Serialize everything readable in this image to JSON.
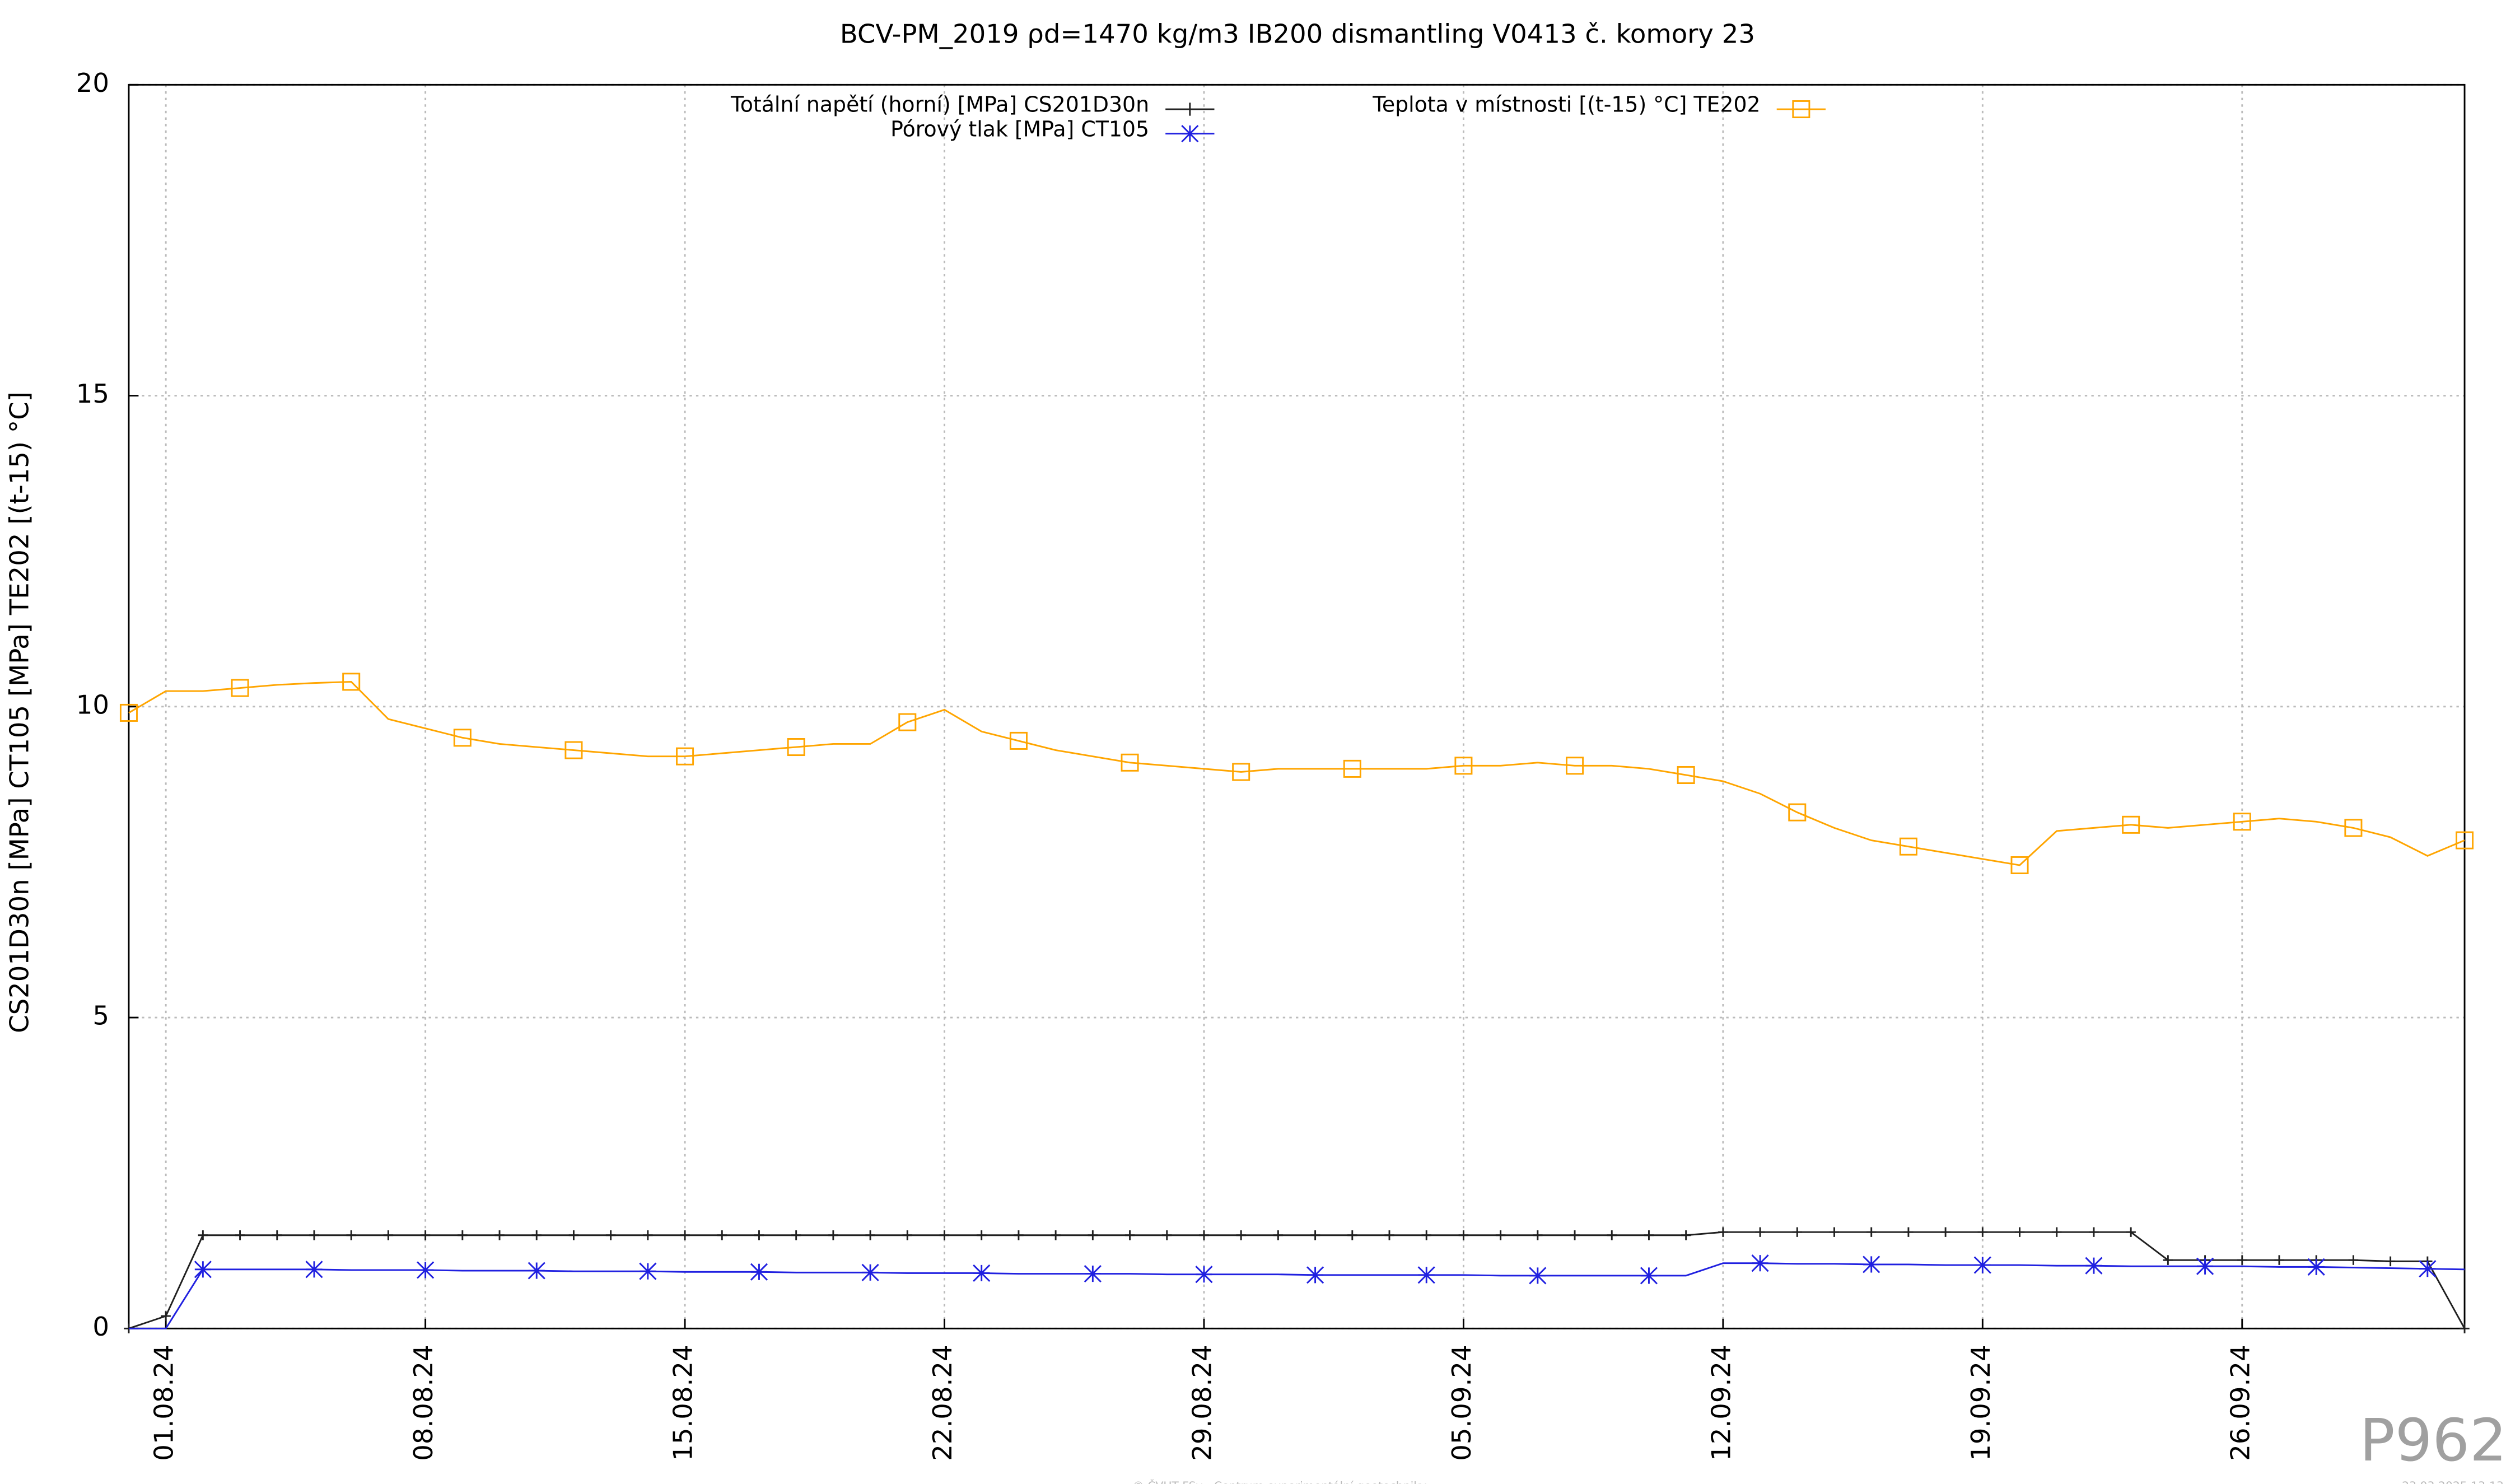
{
  "chart_data": {
    "type": "line",
    "title": "BCV-PM_2019 ρd=1470 kg/m3 IB200 dismantling V0413 č. komory 23",
    "y_label": "CS201D30n [MPa] CT105 [MPa] TE202 [(t-15) °C]",
    "x": [
      "31.07.24",
      "01.08.24",
      "02.08.24",
      "03.08.24",
      "04.08.24",
      "05.08.24",
      "06.08.24",
      "07.08.24",
      "08.08.24",
      "09.08.24",
      "10.08.24",
      "11.08.24",
      "12.08.24",
      "13.08.24",
      "14.08.24",
      "15.08.24",
      "16.08.24",
      "17.08.24",
      "18.08.24",
      "19.08.24",
      "20.08.24",
      "21.08.24",
      "22.08.24",
      "23.08.24",
      "24.08.24",
      "25.08.24",
      "26.08.24",
      "27.08.24",
      "28.08.24",
      "29.08.24",
      "30.08.24",
      "31.08.24",
      "01.09.24",
      "02.09.24",
      "03.09.24",
      "04.09.24",
      "05.09.24",
      "06.09.24",
      "07.09.24",
      "08.09.24",
      "09.09.24",
      "10.09.24",
      "11.09.24",
      "12.09.24",
      "13.09.24",
      "14.09.24",
      "15.09.24",
      "16.09.24",
      "17.09.24",
      "18.09.24",
      "19.09.24",
      "20.09.24",
      "21.09.24",
      "22.09.24",
      "23.09.24",
      "24.09.24",
      "25.09.24",
      "26.09.24",
      "27.09.24",
      "28.09.24",
      "29.09.24",
      "30.09.24",
      "01.10.24",
      "02.10.24"
    ],
    "series": [
      {
        "name": "Totální napětí (horní) [MPa] CS201D30n",
        "color": "#202020",
        "marker": "plus",
        "values": [
          0,
          0.2,
          1.5,
          1.5,
          1.5,
          1.5,
          1.5,
          1.5,
          1.5,
          1.5,
          1.5,
          1.5,
          1.5,
          1.5,
          1.5,
          1.5,
          1.5,
          1.5,
          1.5,
          1.5,
          1.5,
          1.5,
          1.5,
          1.5,
          1.5,
          1.5,
          1.5,
          1.5,
          1.5,
          1.5,
          1.5,
          1.5,
          1.5,
          1.5,
          1.5,
          1.5,
          1.5,
          1.5,
          1.5,
          1.5,
          1.5,
          1.5,
          1.5,
          1.55,
          1.55,
          1.55,
          1.55,
          1.55,
          1.55,
          1.55,
          1.55,
          1.55,
          1.55,
          1.55,
          1.55,
          1.1,
          1.1,
          1.1,
          1.1,
          1.1,
          1.1,
          1.08,
          1.08,
          0
        ]
      },
      {
        "name": "Pórový tlak [MPa] CT105",
        "color": "#2020e0",
        "marker": "star",
        "values": [
          0,
          0,
          0.95,
          0.95,
          0.95,
          0.95,
          0.94,
          0.94,
          0.94,
          0.93,
          0.93,
          0.93,
          0.92,
          0.92,
          0.92,
          0.91,
          0.91,
          0.91,
          0.9,
          0.9,
          0.9,
          0.89,
          0.89,
          0.89,
          0.88,
          0.88,
          0.88,
          0.88,
          0.87,
          0.87,
          0.87,
          0.87,
          0.86,
          0.86,
          0.86,
          0.86,
          0.86,
          0.85,
          0.85,
          0.85,
          0.85,
          0.85,
          0.85,
          1.05,
          1.05,
          1.04,
          1.04,
          1.03,
          1.03,
          1.02,
          1.02,
          1.02,
          1.01,
          1.01,
          1.0,
          1.0,
          1.0,
          1.0,
          0.99,
          0.99,
          0.98,
          0.97,
          0.96,
          0.95
        ]
      },
      {
        "name": "Teplota v místnosti [(t-15) °C] TE202",
        "color": "#ffa500",
        "marker": "square",
        "values": [
          9.9,
          10.25,
          10.25,
          10.3,
          10.35,
          10.38,
          10.4,
          9.8,
          9.65,
          9.5,
          9.4,
          9.35,
          9.3,
          9.25,
          9.2,
          9.2,
          9.25,
          9.3,
          9.35,
          9.4,
          9.4,
          9.75,
          9.95,
          9.6,
          9.45,
          9.3,
          9.2,
          9.1,
          9.05,
          9.0,
          8.95,
          9.0,
          9.0,
          9.0,
          9.0,
          9.0,
          9.05,
          9.05,
          9.1,
          9.05,
          9.05,
          9.0,
          8.9,
          8.8,
          8.6,
          8.3,
          8.05,
          7.85,
          7.75,
          7.65,
          7.55,
          7.45,
          8.0,
          8.05,
          8.1,
          8.05,
          8.1,
          8.15,
          8.2,
          8.15,
          8.05,
          7.9,
          7.6,
          7.85
        ]
      }
    ],
    "xlim": [
      "31.07.24",
      "02.10.24"
    ],
    "xticks": [
      "01.08.24",
      "08.08.24",
      "15.08.24",
      "22.08.24",
      "29.08.24",
      "05.09.24",
      "12.09.24",
      "19.09.24",
      "26.09.24"
    ],
    "ylim": [
      0,
      20
    ],
    "yticks": [
      0,
      5,
      10,
      15,
      20
    ],
    "grid": true,
    "legend": "top"
  },
  "watermark": "P962",
  "footer": "© ČVUT FSv - Centrum experimentální geotechniky",
  "timestamp": "23.03.2025 13:13"
}
